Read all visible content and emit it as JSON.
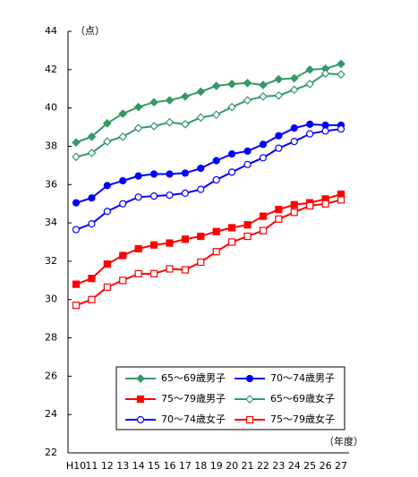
{
  "chart_data": {
    "type": "line",
    "y_label": "（点）",
    "x_label": "（年度）",
    "categories": [
      "H10",
      "11",
      "12",
      "13",
      "14",
      "15",
      "16",
      "17",
      "18",
      "19",
      "20",
      "21",
      "22",
      "23",
      "24",
      "25",
      "26",
      "27"
    ],
    "ylim": [
      22,
      44
    ],
    "yticks": [
      22,
      24,
      26,
      28,
      30,
      32,
      34,
      36,
      38,
      40,
      42,
      44
    ],
    "grid": false,
    "legend": "bottom",
    "series": [
      {
        "name": "65〜69歳男子",
        "color": "#339966",
        "marker": "diamond",
        "filled": true,
        "values": [
          38.2,
          38.5,
          39.2,
          39.7,
          40.05,
          40.3,
          40.4,
          40.6,
          40.85,
          41.15,
          41.25,
          41.3,
          41.2,
          41.5,
          41.55,
          42.0,
          42.05,
          42.3
        ]
      },
      {
        "name": "70〜74歳男子",
        "color": "#0000ff",
        "marker": "circle",
        "filled": true,
        "values": [
          35.05,
          35.3,
          35.95,
          36.2,
          36.45,
          36.55,
          36.55,
          36.6,
          36.85,
          37.25,
          37.6,
          37.75,
          38.1,
          38.55,
          38.95,
          39.15,
          39.1,
          39.1
        ]
      },
      {
        "name": "75〜79歳男子",
        "color": "#ff0000",
        "marker": "square",
        "filled": true,
        "values": [
          30.8,
          31.1,
          31.85,
          32.3,
          32.65,
          32.85,
          32.95,
          33.15,
          33.3,
          33.55,
          33.75,
          33.9,
          34.35,
          34.7,
          34.95,
          35.05,
          35.25,
          35.5
        ]
      },
      {
        "name": "65〜69歳女子",
        "color": "#339966",
        "marker": "diamond",
        "filled": false,
        "values": [
          37.45,
          37.65,
          38.25,
          38.5,
          38.95,
          39.05,
          39.25,
          39.15,
          39.5,
          39.65,
          40.05,
          40.4,
          40.6,
          40.65,
          40.95,
          41.25,
          41.8,
          41.75
        ]
      },
      {
        "name": "70〜74歳女子",
        "color": "#0000ff",
        "marker": "circle",
        "filled": false,
        "values": [
          33.65,
          33.95,
          34.6,
          35.0,
          35.35,
          35.4,
          35.45,
          35.55,
          35.75,
          36.25,
          36.65,
          37.05,
          37.4,
          37.9,
          38.25,
          38.65,
          38.8,
          38.9
        ]
      },
      {
        "name": "75〜79歳女子",
        "color": "#ff0000",
        "marker": "square",
        "filled": false,
        "values": [
          29.7,
          30.0,
          30.65,
          31.0,
          31.35,
          31.35,
          31.6,
          31.55,
          31.95,
          32.5,
          33.0,
          33.3,
          33.6,
          34.2,
          34.55,
          34.9,
          35.0,
          35.2
        ]
      }
    ]
  }
}
